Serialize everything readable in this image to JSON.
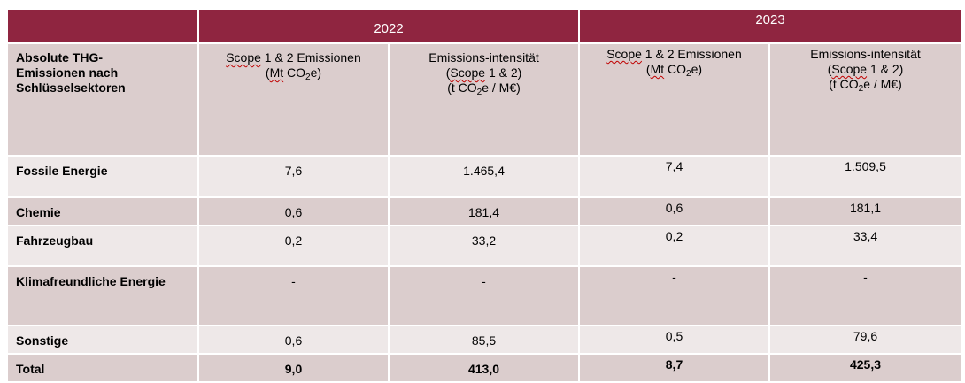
{
  "years": [
    "2022",
    "2023"
  ],
  "header": {
    "row_label": "Absolute THG-Emissionen nach Schlüsselsektoren",
    "scope_emissions": "Scope 1 & 2 Emissionen",
    "scope_unit_open": "(Mt CO",
    "scope_unit_sub": "2",
    "scope_unit_close": "e)",
    "intensity_title": "Emissions-intensität",
    "intensity_scope": "(Scope 1 & 2)",
    "intensity_unit_open": "(t CO",
    "intensity_unit_sub": "2",
    "intensity_unit_close": "e / M€)"
  },
  "rows": [
    {
      "sector": "Fossile Energie",
      "e2022": "7,6",
      "i2022": "1.465,4",
      "e2023": "7,4",
      "i2023": "1.509,5"
    },
    {
      "sector": "Chemie",
      "e2022": "0,6",
      "i2022": "181,4",
      "e2023": "0,6",
      "i2023": "181,1"
    },
    {
      "sector": "Fahrzeugbau",
      "e2022": "0,2",
      "i2022": "33,2",
      "e2023": "0,2",
      "i2023": "33,4"
    },
    {
      "sector": "Klimafreundliche Energie",
      "e2022": "-",
      "i2022": "-",
      "e2023": "-",
      "i2023": "-"
    },
    {
      "sector": "Sonstige",
      "e2022": "0,6",
      "i2022": "85,5",
      "e2023": "0,5",
      "i2023": "79,6"
    },
    {
      "sector": "Total",
      "e2022": "9,0",
      "i2022": "413,0",
      "e2023": "8,7",
      "i2023": "425,3"
    }
  ],
  "colors": {
    "header_maroon": "#8f2540",
    "row_dark": "#dbcdcd",
    "row_light": "#eee8e8"
  }
}
